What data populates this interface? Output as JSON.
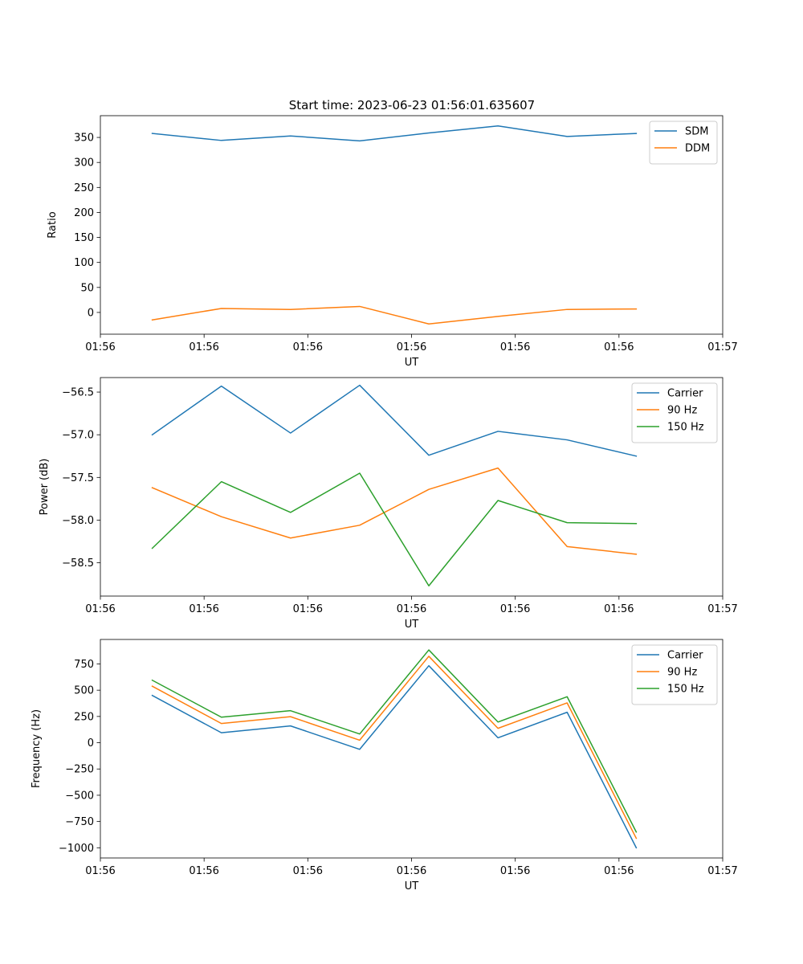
{
  "figure_title": "Start time: 2023-06-23 01:56:01.635607",
  "chart_data": [
    {
      "type": "line",
      "title": "Start time: 2023-06-23 01:56:01.635607",
      "xlabel": "UT",
      "ylabel": "Ratio",
      "x": [
        1,
        2,
        3,
        4,
        5,
        6,
        7,
        8
      ],
      "xlim": [
        0.25,
        9.25
      ],
      "xticks": [
        0.25,
        1.75,
        3.25,
        4.75,
        6.25,
        7.75,
        9.25
      ],
      "xtick_labels": [
        "01:56",
        "01:56",
        "01:56",
        "01:56",
        "01:56",
        "01:56",
        "01:57"
      ],
      "ylim": [
        -43.5,
        393.5
      ],
      "yticks": [
        0,
        50,
        100,
        150,
        200,
        250,
        300,
        350
      ],
      "grid": false,
      "legend_placement": "top-right",
      "series": [
        {
          "name": "SDM",
          "color": "#1f77b4",
          "values": [
            358,
            344,
            353,
            343,
            359,
            373,
            352,
            358
          ]
        },
        {
          "name": "DDM",
          "color": "#ff7f0e",
          "values": [
            -15,
            8,
            6,
            12,
            -23,
            -8,
            6,
            7
          ]
        }
      ]
    },
    {
      "type": "line",
      "xlabel": "UT",
      "ylabel": "Power (dB)",
      "x": [
        1,
        2,
        3,
        4,
        5,
        6,
        7,
        8
      ],
      "xlim": [
        0.25,
        9.25
      ],
      "xticks": [
        0.25,
        1.75,
        3.25,
        4.75,
        6.25,
        7.75,
        9.25
      ],
      "xtick_labels": [
        "01:56",
        "01:56",
        "01:56",
        "01:56",
        "01:56",
        "01:56",
        "01:57"
      ],
      "ylim": [
        -58.89,
        -56.33
      ],
      "yticks": [
        -58.5,
        -58.0,
        -57.5,
        -57.0,
        -56.5
      ],
      "ytick_labels": [
        "−58.5",
        "−58.0",
        "−57.5",
        "−57.0",
        "−56.5"
      ],
      "grid": false,
      "legend_placement": "top-right",
      "series": [
        {
          "name": "Carrier",
          "color": "#1f77b4",
          "values": [
            -57.0,
            -56.43,
            -56.98,
            -56.42,
            -57.24,
            -56.96,
            -57.06,
            -57.25
          ]
        },
        {
          "name": "90 Hz",
          "color": "#ff7f0e",
          "values": [
            -57.62,
            -57.96,
            -58.21,
            -58.06,
            -57.64,
            -57.39,
            -58.31,
            -58.4
          ]
        },
        {
          "name": "150 Hz",
          "color": "#2ca02c",
          "values": [
            -58.33,
            -57.55,
            -57.91,
            -57.45,
            -58.77,
            -57.77,
            -58.03,
            -58.04
          ]
        }
      ]
    },
    {
      "type": "line",
      "xlabel": "UT",
      "ylabel": "Frequency (Hz)",
      "x": [
        1,
        2,
        3,
        4,
        5,
        6,
        7,
        8
      ],
      "xlim": [
        0.25,
        9.25
      ],
      "xticks": [
        0.25,
        1.75,
        3.25,
        4.75,
        6.25,
        7.75,
        9.25
      ],
      "xtick_labels": [
        "01:56",
        "01:56",
        "01:56",
        "01:56",
        "01:56",
        "01:56",
        "01:57"
      ],
      "ylim": [
        -1097,
        983
      ],
      "yticks": [
        -1000,
        -750,
        -500,
        -250,
        0,
        250,
        500,
        750
      ],
      "ytick_labels": [
        "−1000",
        "−750",
        "−500",
        "−250",
        "0",
        "250",
        "500",
        "750"
      ],
      "grid": false,
      "legend_placement": "top-right",
      "series": [
        {
          "name": "Carrier",
          "color": "#1f77b4",
          "values": [
            450,
            95,
            160,
            -63,
            733,
            47,
            290,
            -1000
          ]
        },
        {
          "name": "90 Hz",
          "color": "#ff7f0e",
          "values": [
            538,
            183,
            248,
            24,
            823,
            137,
            379,
            -910
          ]
        },
        {
          "name": "150 Hz",
          "color": "#2ca02c",
          "values": [
            595,
            243,
            305,
            83,
            883,
            197,
            438,
            -850
          ]
        }
      ]
    }
  ]
}
